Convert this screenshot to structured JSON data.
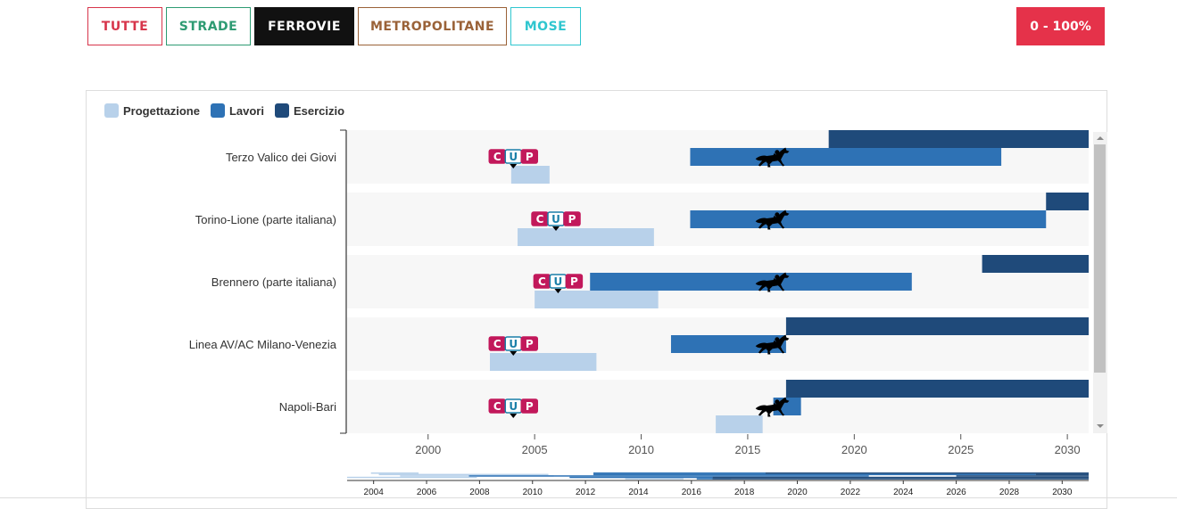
{
  "filters": [
    {
      "label": "TUTTE",
      "color": "#d7354b",
      "width": 84
    },
    {
      "label": "STRADE",
      "color": "#2e9b73",
      "width": 95
    },
    {
      "label": "FERROVIE",
      "color": "#ffffff",
      "bg": "#111111",
      "border": "#111111",
      "width": 112,
      "active": true
    },
    {
      "label": "METROPOLITANE",
      "color": "#9a6238",
      "width": 167
    },
    {
      "label": "MOSE",
      "color": "#2fc6cf",
      "width": 79
    }
  ],
  "range_label": "0 - 100%",
  "legend": [
    {
      "label": "Progettazione",
      "color": "#b8d1ea"
    },
    {
      "label": "Lavori",
      "color": "#2e72b5"
    },
    {
      "label": "Esercizio",
      "color": "#1f4a7a"
    }
  ],
  "cup_text": {
    "c": "C",
    "u": "U",
    "p": "P"
  },
  "chart_data": {
    "type": "gantt",
    "xlim": [
      1996.2,
      2031
    ],
    "x_ticks": [
      2000,
      2005,
      2010,
      2015,
      2020,
      2025,
      2030
    ],
    "minimap_xlim": [
      2003,
      2031
    ],
    "minimap_ticks": [
      2004,
      2006,
      2008,
      2010,
      2012,
      2014,
      2016,
      2018,
      2020,
      2022,
      2024,
      2026,
      2028,
      2030
    ],
    "today": 2016.2,
    "projects": [
      {
        "name": "Terzo Valico dei Giovi",
        "progettazione": [
          2003.9,
          2005.7
        ],
        "lavori": [
          2012.3,
          2026.9
        ],
        "esercizio": [
          2018.8,
          2031
        ],
        "cup": 2004
      },
      {
        "name": "Torino-Lione (parte italiana)",
        "progettazione": [
          2004.2,
          2010.6
        ],
        "lavori": [
          2012.3,
          2029.0
        ],
        "esercizio": [
          2029.0,
          2031
        ],
        "cup": 2006
      },
      {
        "name": "Brennero (parte italiana)",
        "progettazione": [
          2005.0,
          2010.8
        ],
        "lavori": [
          2007.6,
          2022.7
        ],
        "esercizio": [
          2026.0,
          2031
        ],
        "cup": 2006.1
      },
      {
        "name": "Linea AV/AC Milano-Venezia",
        "progettazione": [
          2002.9,
          2007.9
        ],
        "lavori": [
          2011.4,
          2016.8
        ],
        "esercizio": [
          2016.8,
          2031
        ],
        "cup": 2004
      },
      {
        "name": "Napoli-Bari",
        "progettazione": [
          2013.5,
          2015.7
        ],
        "lavori": [
          2016.2,
          2017.5
        ],
        "esercizio": [
          2016.8,
          2031
        ],
        "cup": 2004
      }
    ]
  }
}
